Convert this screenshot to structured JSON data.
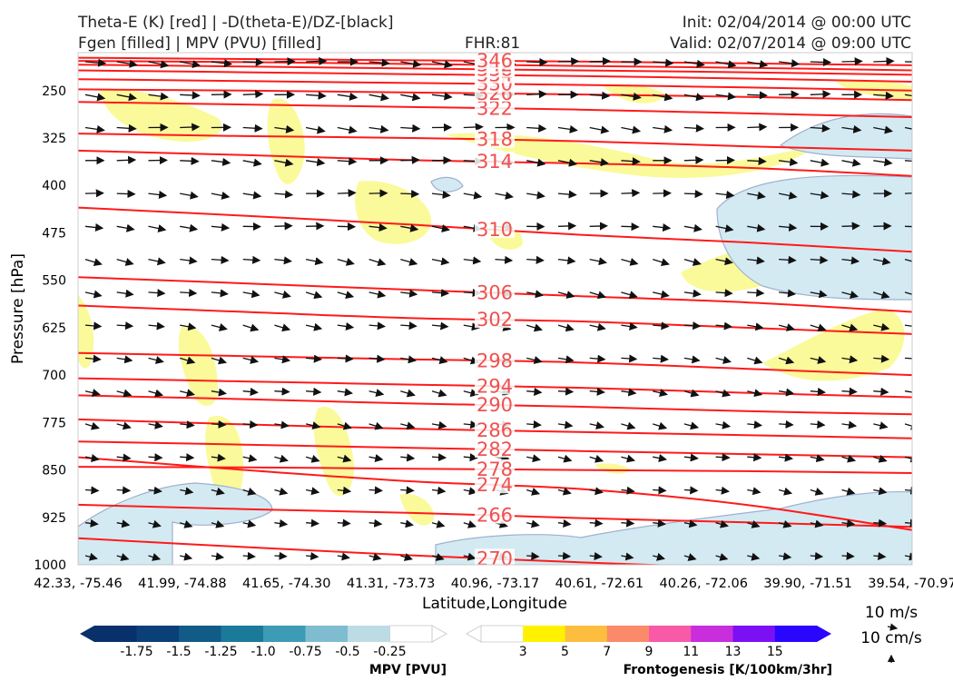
{
  "header": {
    "title_line1": "Theta-E (K) [red] | -D(theta-E)/DZ-[black]",
    "title_line2": "Fgen [filled] | MPV (PVU) [filled]",
    "fhr": "FHR:81",
    "init": "Init: 02/04/2014 @ 00:00 UTC",
    "valid": "Valid: 02/07/2014 @ 09:00 UTC"
  },
  "chart_data": {
    "type": "cross-section",
    "ylabel": "Pressure [hPa]",
    "xlabel": "Latitude,Longitude",
    "y_ticks": [
      250,
      325,
      400,
      475,
      550,
      625,
      700,
      775,
      850,
      925,
      1000
    ],
    "ylim": [
      1000,
      190
    ],
    "x_ticks": [
      "42.33, -75.46",
      "41.99, -74.88",
      "41.65, -74.30",
      "41.31, -73.73",
      "40.96, -73.17",
      "40.61, -72.61",
      "40.26, -72.06",
      "39.90, -71.51",
      "39.54, -70.97"
    ],
    "theta_e_contours": [
      {
        "label": "266",
        "p": [
          905,
          912,
          918,
          926,
          933,
          940
        ]
      },
      {
        "label": "270",
        "p": [
          958,
          972,
          985,
          996,
          1005,
          1012
        ]
      },
      {
        "label": "274",
        "p": [
          830,
          850,
          868,
          880,
          905,
          945
        ]
      },
      {
        "label": "278",
        "p": [
          845,
          846,
          848,
          850,
          852,
          855
        ]
      },
      {
        "label": "282",
        "p": [
          805,
          810,
          815,
          820,
          825,
          830
        ]
      },
      {
        "label": "286",
        "p": [
          770,
          778,
          785,
          790,
          795,
          800
        ]
      },
      {
        "label": "290",
        "p": [
          732,
          738,
          745,
          750,
          757,
          762
        ]
      },
      {
        "label": "294",
        "p": [
          705,
          710,
          715,
          720,
          728,
          735
        ]
      },
      {
        "label": "298",
        "p": [
          665,
          670,
          675,
          680,
          690,
          700
        ]
      },
      {
        "label": "302",
        "p": [
          590,
          600,
          610,
          615,
          625,
          635
        ]
      },
      {
        "label": "306",
        "p": [
          545,
          555,
          565,
          575,
          585,
          600
        ]
      },
      {
        "label": "310",
        "p": [
          435,
          448,
          462,
          478,
          490,
          505
        ]
      },
      {
        "label": "314",
        "p": [
          345,
          352,
          360,
          365,
          372,
          385
        ]
      },
      {
        "label": "318",
        "p": [
          318,
          322,
          325,
          330,
          338,
          345
        ]
      },
      {
        "label": "322",
        "p": [
          268,
          272,
          276,
          280,
          286,
          292
        ]
      },
      {
        "label": "326",
        "p": [
          248,
          250,
          253,
          256,
          260,
          265
        ]
      },
      {
        "label": "330",
        "p": [
          232,
          235,
          238,
          241,
          245,
          250
        ]
      },
      {
        "label": "334",
        "p": [
          218,
          221,
          224,
          227,
          231,
          236
        ]
      },
      {
        "label": "338",
        "p": [
          209,
          212,
          215,
          218,
          221,
          225
        ]
      },
      {
        "label": "342",
        "p": [
          203,
          205,
          208,
          211,
          214,
          218
        ]
      },
      {
        "label": "346",
        "p": [
          198,
          200,
          202,
          204,
          207,
          210
        ]
      }
    ],
    "mpv_colorbar": {
      "title": "MPV [PVU]",
      "ticks": [
        "-1.75",
        "-1.5",
        "-1.25",
        "-1.0",
        "-0.75",
        "-0.5",
        "-0.25"
      ],
      "colors": [
        "#08306b",
        "#0b3f78",
        "#115b87",
        "#1b7a99",
        "#3d9bb6",
        "#7fbcd0",
        "#bcdbe5",
        "#ffffff"
      ]
    },
    "fgen_colorbar": {
      "title": "Frontogenesis [K/100km/3hr]",
      "ticks": [
        "3",
        "5",
        "7",
        "9",
        "11",
        "13",
        "15"
      ],
      "colors": [
        "#ffffff",
        "#fff200",
        "#fdbe3f",
        "#fa8a6a",
        "#f95aa8",
        "#c82edc",
        "#7c10f5",
        "#2a06ff"
      ]
    },
    "legend": {
      "line1": "10 m/s",
      "line2": "10 cm/s"
    },
    "colors": {
      "theta_e": "#ff1a1a",
      "wind": "#111111",
      "fgen_fill": "#fafa9a",
      "mpv_fill": "#d3eaf2"
    }
  }
}
